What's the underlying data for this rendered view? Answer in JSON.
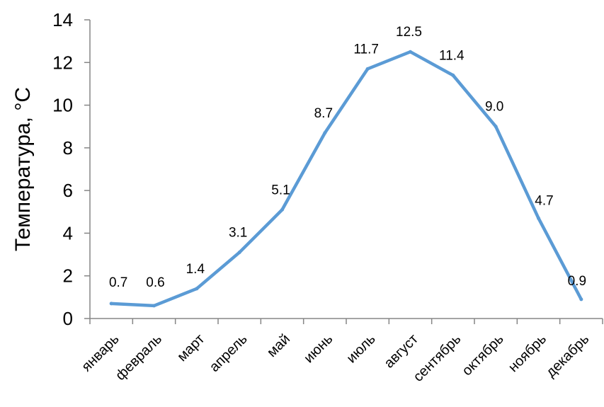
{
  "chart_data": {
    "type": "line",
    "title": "",
    "xlabel": "",
    "ylabel": "Температура, °C",
    "categories": [
      "январь",
      "февраль",
      "март",
      "апрель",
      "май",
      "июнь",
      "июль",
      "август",
      "сентябрь",
      "октябрь",
      "ноябрь",
      "декабрь"
    ],
    "series": [
      {
        "values": [
          0.7,
          0.6,
          1.4,
          3.1,
          5.1,
          8.7,
          11.7,
          12.5,
          11.4,
          9.0,
          4.7,
          0.9
        ],
        "data_labels": [
          "0.7",
          "0.6",
          "1.4",
          "3.1",
          "5.1",
          "8.7",
          "11.7",
          "12.5",
          "11.4",
          "9.0",
          "4.7",
          "0.9"
        ],
        "color": "#5b9bd5"
      }
    ],
    "ylim": [
      0,
      14
    ],
    "yticks": [
      0,
      2,
      4,
      6,
      8,
      10,
      12,
      14
    ],
    "ytick_labels": [
      "0",
      "2",
      "4",
      "6",
      "8",
      "10",
      "12",
      "14"
    ],
    "grid": false,
    "legend": "none"
  }
}
